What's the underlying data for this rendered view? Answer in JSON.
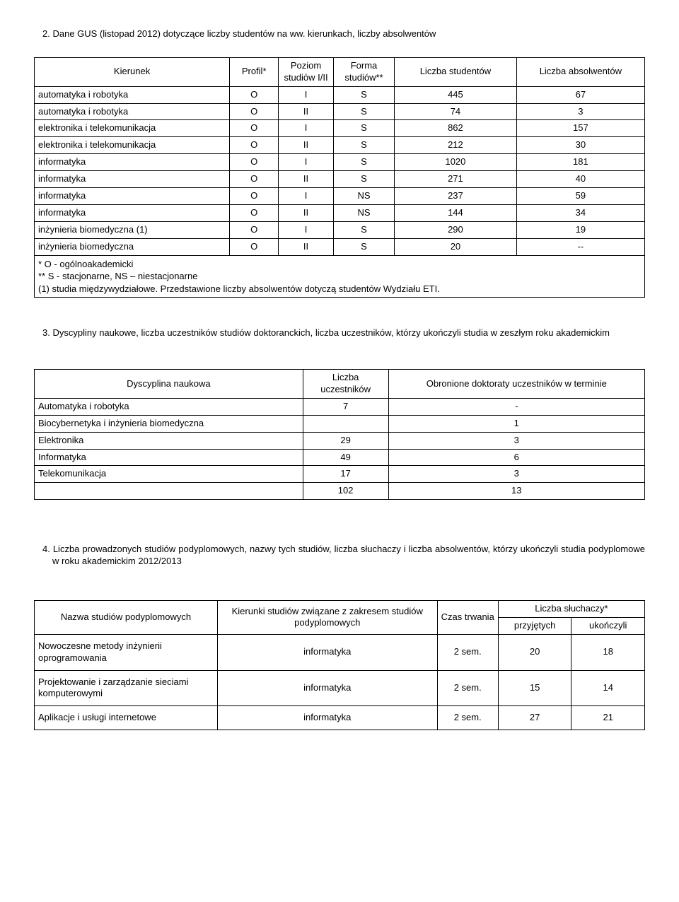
{
  "section2": {
    "num": "2.",
    "heading": "Dane GUS (listopad 2012) dotyczące liczby studentów na ww. kierunkach, liczby absolwentów",
    "headers": {
      "kierunek": "Kierunek",
      "profil": "Profil*",
      "poziom": "Poziom studiów I/II",
      "forma": "Forma studiów**",
      "ls": "Liczba studentów",
      "la": "Liczba absolwentów"
    },
    "rows": [
      {
        "k": "automatyka i robotyka",
        "p": "O",
        "pz": "I",
        "f": "S",
        "ls": "445",
        "la": "67"
      },
      {
        "k": "automatyka i robotyka",
        "p": "O",
        "pz": "II",
        "f": "S",
        "ls": "74",
        "la": "3"
      },
      {
        "k": "elektronika i telekomunikacja",
        "p": "O",
        "pz": "I",
        "f": "S",
        "ls": "862",
        "la": "157"
      },
      {
        "k": "elektronika i telekomunikacja",
        "p": "O",
        "pz": "II",
        "f": "S",
        "ls": "212",
        "la": "30"
      },
      {
        "k": "informatyka",
        "p": "O",
        "pz": "I",
        "f": "S",
        "ls": "1020",
        "la": "181"
      },
      {
        "k": "informatyka",
        "p": "O",
        "pz": "II",
        "f": "S",
        "ls": "271",
        "la": "40"
      },
      {
        "k": "informatyka",
        "p": "O",
        "pz": "I",
        "f": "NS",
        "ls": "237",
        "la": "59"
      },
      {
        "k": "informatyka",
        "p": "O",
        "pz": "II",
        "f": "NS",
        "ls": "144",
        "la": "34"
      },
      {
        "k": "inżynieria biomedyczna (1)",
        "p": "O",
        "pz": "I",
        "f": "S",
        "ls": "290",
        "la": "19"
      },
      {
        "k": "inżynieria biomedyczna",
        "p": "O",
        "pz": "II",
        "f": "S",
        "ls": "20",
        "la": "--"
      }
    ],
    "footnotes": [
      "* O - ogólnoakademicki",
      "** S - stacjonarne, NS – niestacjonarne",
      "(1) studia międzywydziałowe. Przedstawione liczby absolwentów dotyczą studentów Wydziału ETI."
    ]
  },
  "section3": {
    "num": "3.",
    "heading": "Dyscypliny naukowe, liczba uczestników studiów doktoranckich, liczba uczestników, którzy ukończyli studia w zeszłym roku akademickim",
    "headers": {
      "dysc": "Dyscyplina naukowa",
      "liczba": "Liczba uczestników",
      "obr": "Obronione doktoraty uczestników w terminie"
    },
    "rows": [
      {
        "d": "Automatyka i robotyka",
        "l": "7",
        "o": "-"
      },
      {
        "d": "Biocybernetyka i inżynieria biomedyczna",
        "l": "",
        "o": "1"
      },
      {
        "d": "Elektronika",
        "l": "29",
        "o": "3"
      },
      {
        "d": "Informatyka",
        "l": "49",
        "o": "6"
      },
      {
        "d": "Telekomunikacja",
        "l": "17",
        "o": "3"
      },
      {
        "d": "",
        "l": "102",
        "o": "13"
      }
    ]
  },
  "section4": {
    "num": "4.",
    "heading": "Liczba prowadzonych studiów podyplomowych, nazwy tych studiów, liczba słuchaczy i liczba absolwentów, którzy ukończyli studia podyplomowe w roku akademickim 2012/2013",
    "headers": {
      "nazwa": "Nazwa studiów podyplomowych",
      "kier": "Kierunki studiów związane z zakresem studiów podyplomowych",
      "czas": "Czas trwania",
      "sluch": "Liczba słuchaczy*",
      "przy": "przyjętych",
      "ukon": "ukończyli"
    },
    "rows": [
      {
        "n": "Nowoczesne metody inżynierii oprogramowania",
        "k": "informatyka",
        "c": "2 sem.",
        "p": "20",
        "u": "18"
      },
      {
        "n": "Projektowanie i zarządzanie sieciami komputerowymi",
        "k": "informatyka",
        "c": "2 sem.",
        "p": "15",
        "u": "14"
      },
      {
        "n": "Aplikacje i usługi internetowe",
        "k": "informatyka",
        "c": "2 sem.",
        "p": "27",
        "u": "21"
      }
    ]
  }
}
